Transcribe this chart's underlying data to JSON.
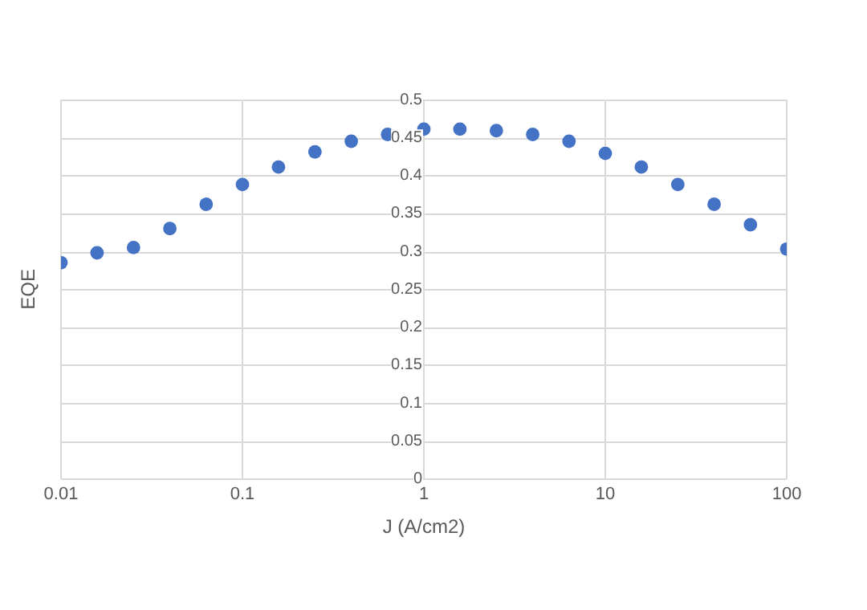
{
  "chart_data": {
    "type": "scatter",
    "xlabel": "J (A/cm2)",
    "ylabel": "EQE",
    "log": "x",
    "grid": true,
    "marker": "circle",
    "legend": false,
    "x": [
      0.01,
      0.0158,
      0.0251,
      0.0398,
      0.0631,
      0.1,
      0.158,
      0.251,
      0.398,
      0.631,
      1,
      1.58,
      2.51,
      3.98,
      6.31,
      10,
      15.8,
      25.1,
      39.8,
      63.1,
      100
    ],
    "series": [
      {
        "color": "#4472c4",
        "values": [
          0.285,
          0.298,
          0.305,
          0.33,
          0.362,
          0.388,
          0.411,
          0.431,
          0.445,
          0.454,
          0.461,
          0.461,
          0.459,
          0.454,
          0.445,
          0.429,
          0.411,
          0.388,
          0.362,
          0.335,
          0.303
        ]
      }
    ],
    "xlim": [
      0.01,
      100
    ],
    "xticks": [
      0.01,
      0.1,
      1,
      10,
      100
    ],
    "ylim": [
      0,
      0.5
    ],
    "yticks": [
      0,
      0.05,
      0.1,
      0.15,
      0.2,
      0.25,
      0.3,
      0.35,
      0.4,
      0.45,
      0.5
    ]
  }
}
